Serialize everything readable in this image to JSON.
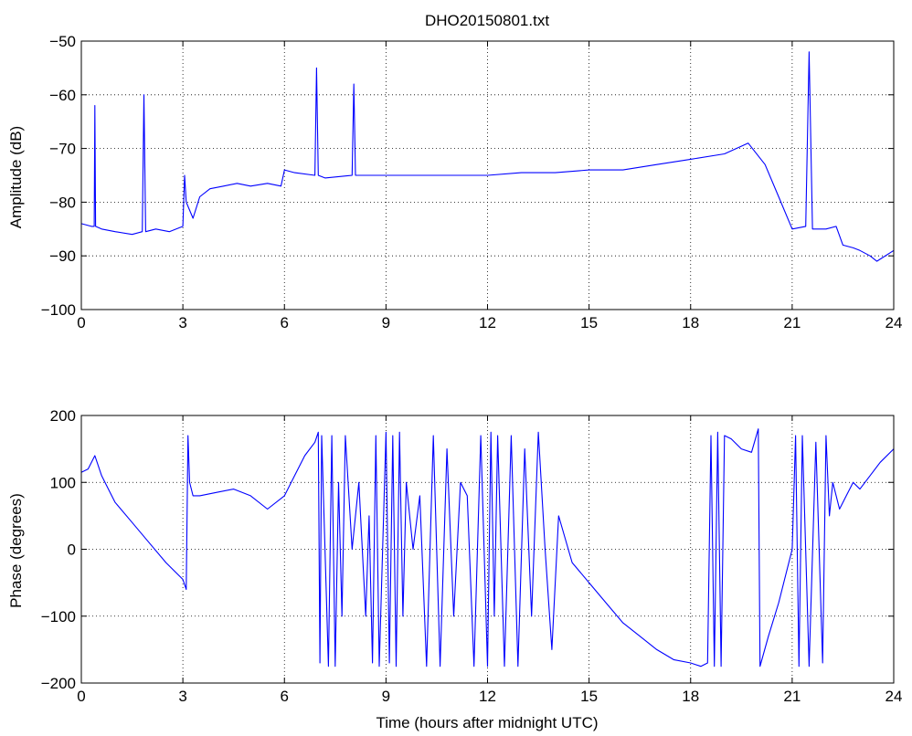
{
  "figure": {
    "title": "DHO20150801.txt",
    "line_color": "#0000ff",
    "grid_style": "dotted"
  },
  "chart_data": [
    {
      "type": "line",
      "title": "DHO20150801.txt",
      "xlabel": "",
      "ylabel": "Amplitude (dB)",
      "xlim": [
        0,
        24
      ],
      "ylim": [
        -100,
        -50
      ],
      "xticks": [
        0,
        3,
        6,
        9,
        12,
        15,
        18,
        21,
        24
      ],
      "yticks": [
        -100,
        -90,
        -80,
        -70,
        -60,
        -50
      ],
      "grid": true,
      "series": [
        {
          "color": "#0000ff",
          "x": [
            0.0,
            0.3,
            0.38,
            0.4,
            0.42,
            0.6,
            1.0,
            1.5,
            1.8,
            1.85,
            1.9,
            2.2,
            2.6,
            3.0,
            3.05,
            3.1,
            3.3,
            3.5,
            3.8,
            4.2,
            4.6,
            5.0,
            5.5,
            5.9,
            6.0,
            6.3,
            6.9,
            6.95,
            7.0,
            7.2,
            8.0,
            8.05,
            8.1,
            9.0,
            10.0,
            11.0,
            12.0,
            13.0,
            14.0,
            15.0,
            16.0,
            17.0,
            18.0,
            19.0,
            19.7,
            20.2,
            20.6,
            21.0,
            21.4,
            21.5,
            21.6,
            22.0,
            22.3,
            22.5,
            22.8,
            23.0,
            23.3,
            23.5,
            24.0
          ],
          "y": [
            -84,
            -84.5,
            -84.5,
            -62,
            -84.5,
            -85,
            -85.5,
            -86,
            -85.5,
            -60,
            -85.5,
            -85,
            -85.5,
            -84.5,
            -75,
            -80,
            -83,
            -79,
            -77.5,
            -77,
            -76.5,
            -77,
            -76.5,
            -77,
            -74,
            -74.5,
            -75,
            -55,
            -75,
            -75.5,
            -75,
            -58,
            -75,
            -75,
            -75,
            -75,
            -75,
            -74.5,
            -74.5,
            -74,
            -74,
            -73,
            -72,
            -71,
            -69,
            -73,
            -79,
            -85,
            -84.5,
            -52,
            -85,
            -85,
            -84.5,
            -88,
            -88.5,
            -89,
            -90,
            -91,
            -89
          ]
        }
      ]
    },
    {
      "type": "line",
      "title": "",
      "xlabel": "Time (hours after midnight UTC)",
      "ylabel": "Phase (degrees)",
      "xlim": [
        0,
        24
      ],
      "ylim": [
        -200,
        200
      ],
      "xticks": [
        0,
        3,
        6,
        9,
        12,
        15,
        18,
        21,
        24
      ],
      "yticks": [
        -200,
        -100,
        0,
        100,
        200
      ],
      "grid": true,
      "series": [
        {
          "color": "#0000ff",
          "x": [
            0.0,
            0.2,
            0.4,
            0.6,
            0.8,
            1.0,
            1.5,
            2.0,
            2.5,
            3.0,
            3.1,
            3.15,
            3.2,
            3.3,
            3.5,
            4.0,
            4.5,
            5.0,
            5.5,
            6.0,
            6.3,
            6.6,
            6.9,
            7.0,
            7.05,
            7.1,
            7.3,
            7.4,
            7.5,
            7.6,
            7.7,
            7.8,
            8.0,
            8.2,
            8.4,
            8.5,
            8.6,
            8.7,
            8.8,
            9.0,
            9.1,
            9.2,
            9.3,
            9.4,
            9.5,
            9.6,
            9.8,
            10.0,
            10.2,
            10.4,
            10.6,
            10.8,
            11.0,
            11.2,
            11.4,
            11.6,
            11.8,
            12.0,
            12.1,
            12.2,
            12.3,
            12.5,
            12.7,
            12.9,
            13.1,
            13.3,
            13.5,
            13.7,
            13.9,
            14.1,
            14.5,
            15.0,
            15.5,
            16.0,
            16.5,
            17.0,
            17.5,
            18.0,
            18.3,
            18.5,
            18.6,
            18.7,
            18.8,
            18.9,
            19.0,
            19.2,
            19.5,
            19.8,
            20.0,
            20.05,
            20.3,
            20.6,
            20.9,
            21.0,
            21.1,
            21.2,
            21.3,
            21.5,
            21.7,
            21.9,
            22.0,
            22.1,
            22.2,
            22.4,
            22.6,
            22.8,
            23.0,
            23.3,
            23.6,
            24.0
          ],
          "y": [
            115,
            120,
            140,
            110,
            90,
            70,
            40,
            10,
            -20,
            -45,
            -60,
            170,
            100,
            80,
            80,
            85,
            90,
            80,
            60,
            80,
            110,
            140,
            160,
            175,
            -170,
            170,
            -175,
            170,
            -175,
            100,
            -100,
            170,
            0,
            100,
            -100,
            50,
            -170,
            170,
            -175,
            175,
            -170,
            170,
            -175,
            175,
            -100,
            100,
            0,
            80,
            -175,
            170,
            -175,
            150,
            -100,
            100,
            80,
            -175,
            170,
            -175,
            175,
            -100,
            170,
            -175,
            170,
            -175,
            150,
            -100,
            175,
            0,
            -150,
            50,
            -20,
            -50,
            -80,
            -110,
            -130,
            -150,
            -165,
            -170,
            -175,
            -170,
            170,
            -175,
            175,
            -175,
            170,
            165,
            150,
            145,
            180,
            -175,
            -130,
            -80,
            -20,
            0,
            170,
            -175,
            170,
            -175,
            160,
            -170,
            170,
            50,
            100,
            60,
            80,
            100,
            90,
            110,
            130,
            150
          ]
        }
      ]
    }
  ]
}
